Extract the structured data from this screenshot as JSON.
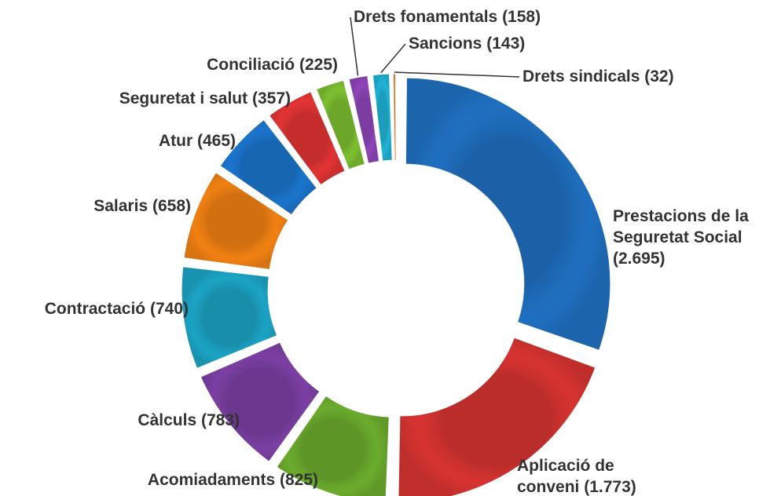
{
  "chart_data": {
    "type": "donut",
    "categories": [
      "Prestacions de la Seguretat Social",
      "Aplicació de conveni",
      "Acomiadaments",
      "Càlculs",
      "Contractació",
      "Salaris",
      "Atur",
      "Seguretat i salut",
      "Conciliació",
      "Drets fonamentals",
      "Sancions",
      "Drets sindicals"
    ],
    "values": [
      2695,
      1773,
      825,
      783,
      740,
      658,
      465,
      357,
      225,
      158,
      143,
      32
    ],
    "value_labels": [
      "(2.695)",
      "(1.773)",
      "(825)",
      "(783)",
      "(740)",
      "(658)",
      "(465)",
      "(357)",
      "(225)",
      "(158)",
      "(143)",
      "(32)"
    ],
    "colors": [
      "#1f6fc0",
      "#d63330",
      "#6aab2c",
      "#7b3fa3",
      "#1ba3c4",
      "#f08012",
      "#1a74cc",
      "#e23333",
      "#7cbf30",
      "#8e44b8",
      "#1fb3d6",
      "#f08020"
    ]
  }
}
